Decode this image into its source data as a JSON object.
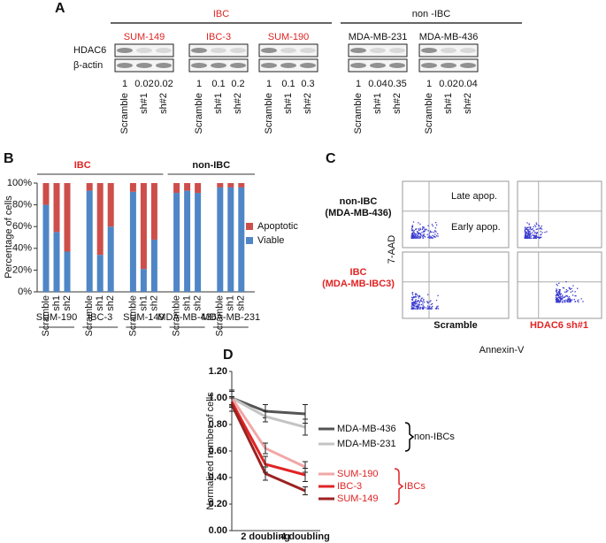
{
  "panel_a": {
    "label": "A",
    "rows": [
      "HDAC6",
      "β-actin"
    ],
    "lanes": [
      "Scramble",
      "sh#1",
      "sh#2"
    ],
    "groups": [
      {
        "name": "IBC",
        "samples": [
          {
            "name": "SUM-149",
            "values": [
              1,
              0.02,
              0.02
            ]
          },
          {
            "name": "IBC-3",
            "values": [
              1,
              0.1,
              0.2
            ]
          },
          {
            "name": "SUM-190",
            "values": [
              1,
              0.1,
              0.3
            ]
          }
        ]
      },
      {
        "name": "non -IBC",
        "samples": [
          {
            "name": "MDA-MB-231",
            "values": [
              1,
              0.04,
              0.35
            ]
          },
          {
            "name": "MDA-MB-436",
            "values": [
              1,
              0.02,
              0.04
            ]
          }
        ]
      }
    ]
  },
  "panel_c": {
    "label": "C",
    "row_labels": [
      [
        "non-IBC",
        "(MDA-MB-436)"
      ],
      [
        "IBC",
        "(MDA-MB-IBC3)"
      ]
    ],
    "gate_labels": [
      "Late apop.",
      "Early apop."
    ],
    "column_labels": [
      "Scramble",
      "HDAC6 sh#1"
    ],
    "y_label": "7-AAD",
    "x_label": "Annexin-V"
  },
  "chart_data": [
    {
      "type": "bar",
      "panel": "B",
      "y_label": "Percentage of cells",
      "headers": [
        "IBC",
        "non-IBC"
      ],
      "groups": [
        "SUM-190",
        "IBC-3",
        "SUM-149",
        "MDA-MB-436",
        "MDA-MB-231"
      ],
      "categories": [
        "Scramble",
        "sh1",
        "sh2",
        "Scramble",
        "sh1",
        "sh2",
        "Scramble",
        "sh1",
        "sh2",
        "Scramble",
        "sh1",
        "sh2",
        "Scramble",
        "sh1",
        "sh2"
      ],
      "series": [
        {
          "name": "Viable",
          "color": "#4f86c6",
          "values": [
            80,
            55,
            37,
            93,
            34,
            60,
            92,
            21,
            48,
            91,
            93,
            91,
            96,
            96,
            96
          ]
        },
        {
          "name": "Apoptotic",
          "color": "#cd4e4a",
          "values": [
            20,
            45,
            63,
            7,
            66,
            40,
            8,
            79,
            52,
            9,
            7,
            9,
            4,
            4,
            4
          ]
        }
      ],
      "stacked": true,
      "ylim": [
        0,
        100
      ],
      "yticks": [
        {
          "value": 0,
          "label": "0%"
        },
        {
          "value": 20,
          "label": "20%"
        },
        {
          "value": 40,
          "label": "40%"
        },
        {
          "value": 60,
          "label": "60%"
        },
        {
          "value": 80,
          "label": "80%"
        },
        {
          "value": 100,
          "label": "100%"
        }
      ]
    },
    {
      "type": "line",
      "panel": "D",
      "y_label": "Normalized number of cells",
      "categories": [
        null,
        "2 doubling",
        "4 doubling"
      ],
      "brackets": [
        "non-IBCs",
        "IBCs"
      ],
      "series": [
        {
          "name": "MDA-MB-436",
          "color": "#555555",
          "values": [
            1.0,
            0.9,
            0.88
          ],
          "errors": [
            0.06,
            0.05,
            0.07
          ]
        },
        {
          "name": "MDA-MB-231",
          "color": "#c4c4c4",
          "values": [
            1.0,
            0.86,
            0.78
          ],
          "errors": [
            0.06,
            0.04,
            0.06
          ]
        },
        {
          "name": "SUM-190",
          "color": "#f2a7a7",
          "values": [
            1.0,
            0.62,
            0.48
          ],
          "errors": [
            0.05,
            0.04,
            0.04
          ]
        },
        {
          "name": "IBC-3",
          "color": "#e02424",
          "values": [
            0.97,
            0.5,
            0.42
          ],
          "errors": [
            0.04,
            0.06,
            0.05
          ]
        },
        {
          "name": "SUM-149",
          "color": "#9c2222",
          "values": [
            0.95,
            0.43,
            0.3
          ],
          "errors": [
            0.05,
            0.05,
            0.03
          ]
        }
      ],
      "ylim": [
        0,
        1.2
      ],
      "yticks": [
        {
          "value": 0,
          "label": "0.00"
        },
        {
          "value": 0.2,
          "label": "0.20"
        },
        {
          "value": 0.4,
          "label": "0.40"
        },
        {
          "value": 0.6,
          "label": "0.60"
        },
        {
          "value": 0.8,
          "label": "0.80"
        },
        {
          "value": 1,
          "label": "1.00"
        },
        {
          "value": 1.2,
          "label": "1.20"
        }
      ]
    }
  ]
}
